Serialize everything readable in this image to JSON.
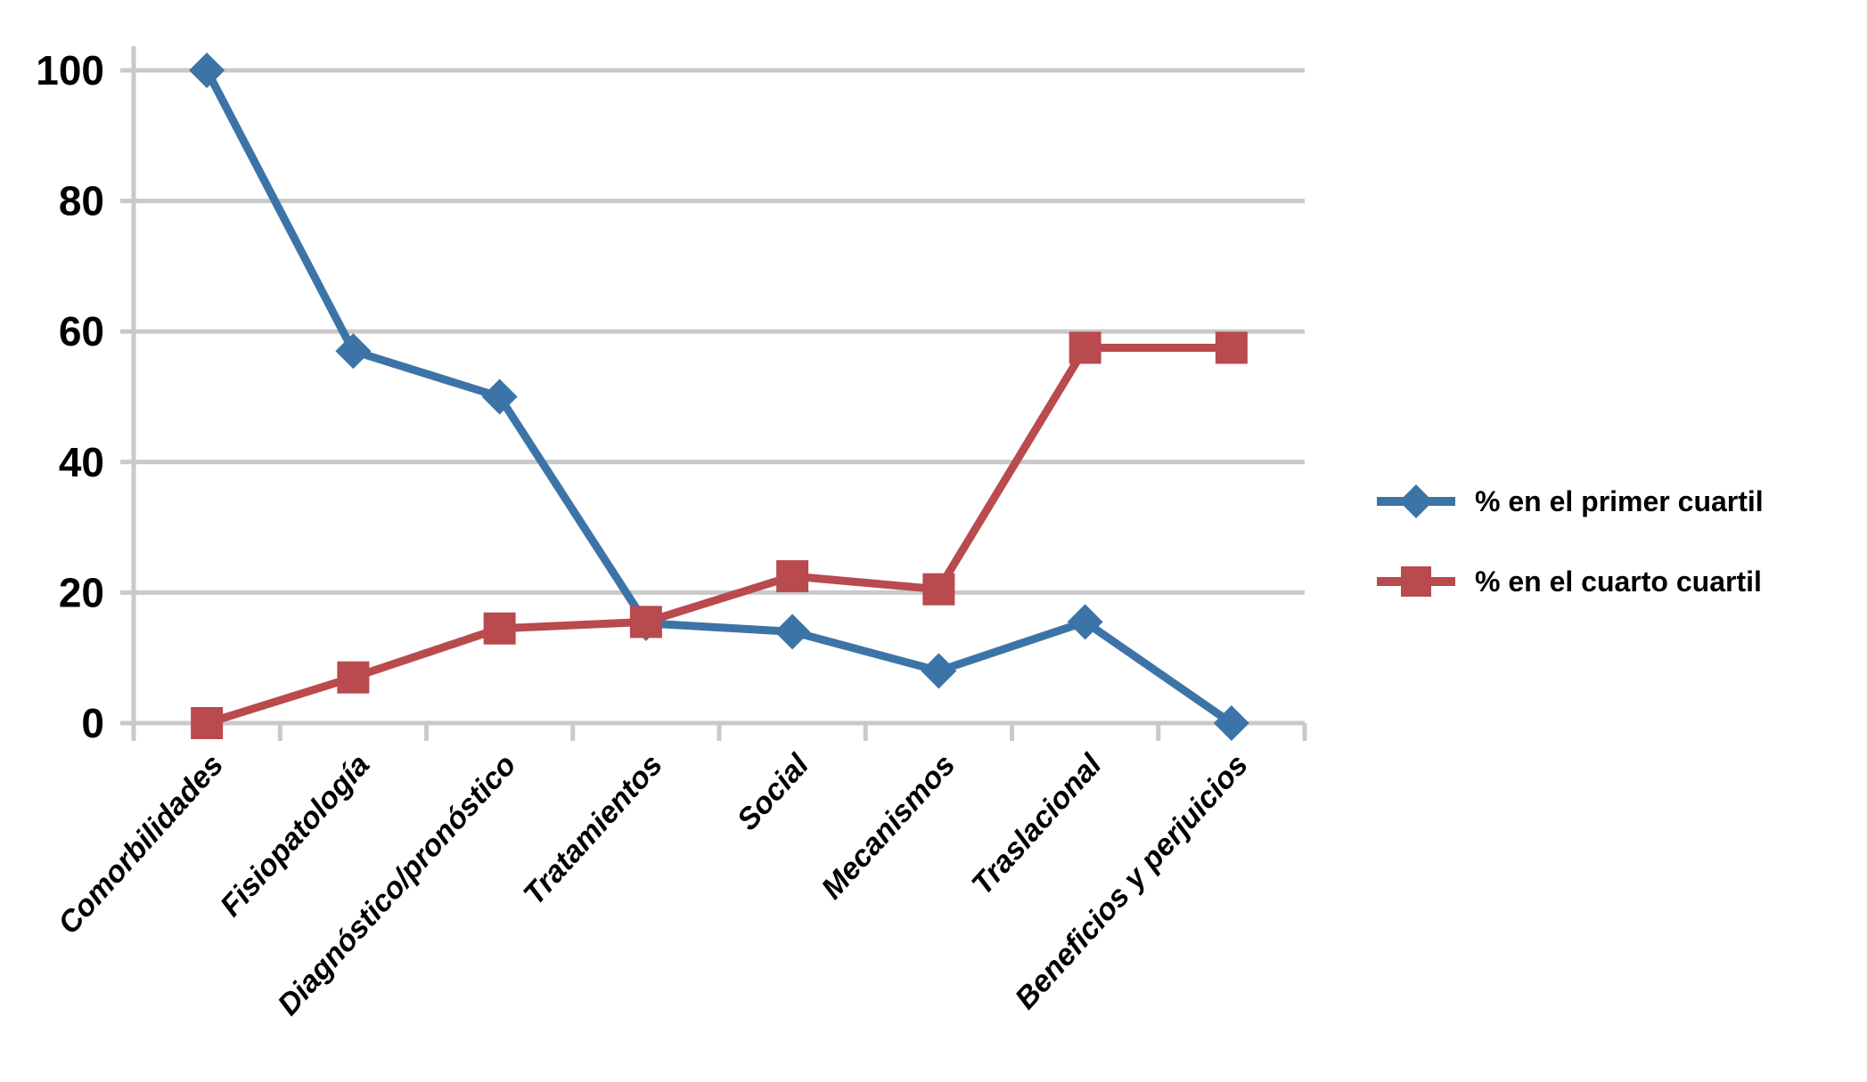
{
  "chart_data": {
    "type": "line",
    "title": "",
    "categories": [
      "Comorbilidades",
      "Fisiopatología",
      "Diagnóstico/pronóstico",
      "Tratamientos",
      "Social",
      "Mecanismos",
      "Traslacional",
      "Beneficios y perjuicios"
    ],
    "series": [
      {
        "name": "% en el primer cuartil",
        "color": "#3D74A8",
        "marker": "diamond",
        "values": [
          100,
          57,
          50,
          15.3,
          14,
          8,
          15.5,
          0
        ]
      },
      {
        "name": "% en el cuarto cuartil",
        "color": "#B94A4D",
        "marker": "square",
        "values": [
          0,
          7,
          14.5,
          15.5,
          22.5,
          20.5,
          57.5,
          57.5
        ]
      }
    ],
    "y_axis": {
      "min": 0,
      "max": 100,
      "step": 20,
      "tick_labels": [
        "0",
        "20",
        "40",
        "60",
        "80",
        "100"
      ]
    },
    "x_axis": {
      "label_rotation_deg": -48
    },
    "grid": true,
    "legend_position": "right",
    "colors": {
      "gridline": "#C9C9C9",
      "axis": "#C9C9C9",
      "text": "#000000",
      "background": "#FFFFFF"
    }
  }
}
